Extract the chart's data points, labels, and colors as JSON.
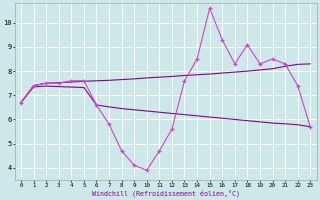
{
  "bg_color": "#cce8e8",
  "grid_color": "#ffffff",
  "line_color_dark": "#880088",
  "line_color_bright": "#cc44cc",
  "xlabel": "Windchill (Refroidissement éolien,°C)",
  "ylim": [
    3.5,
    10.8
  ],
  "yticks": [
    4,
    5,
    6,
    7,
    8,
    9,
    10
  ],
  "xticks": [
    0,
    1,
    2,
    3,
    4,
    5,
    6,
    7,
    8,
    9,
    10,
    11,
    12,
    13,
    14,
    15,
    16,
    17,
    18,
    19,
    20,
    21,
    22,
    23
  ],
  "wc": [
    6.7,
    7.4,
    7.5,
    7.5,
    7.6,
    7.6,
    6.6,
    5.8,
    4.7,
    4.1,
    3.9,
    4.7,
    5.6,
    7.6,
    8.5,
    10.6,
    9.3,
    8.3,
    9.1,
    8.3,
    8.5,
    8.3,
    7.4,
    5.7
  ],
  "upper": [
    6.7,
    7.4,
    7.5,
    7.52,
    7.55,
    7.58,
    7.6,
    7.62,
    7.65,
    7.68,
    7.72,
    7.75,
    7.78,
    7.82,
    7.85,
    7.88,
    7.92,
    7.96,
    8.0,
    8.05,
    8.1,
    8.2,
    8.28,
    8.3
  ],
  "lower": [
    6.7,
    7.35,
    7.38,
    7.36,
    7.34,
    7.32,
    6.6,
    6.52,
    6.45,
    6.4,
    6.35,
    6.3,
    6.25,
    6.2,
    6.15,
    6.1,
    6.05,
    6.0,
    5.95,
    5.9,
    5.85,
    5.82,
    5.78,
    5.7
  ]
}
